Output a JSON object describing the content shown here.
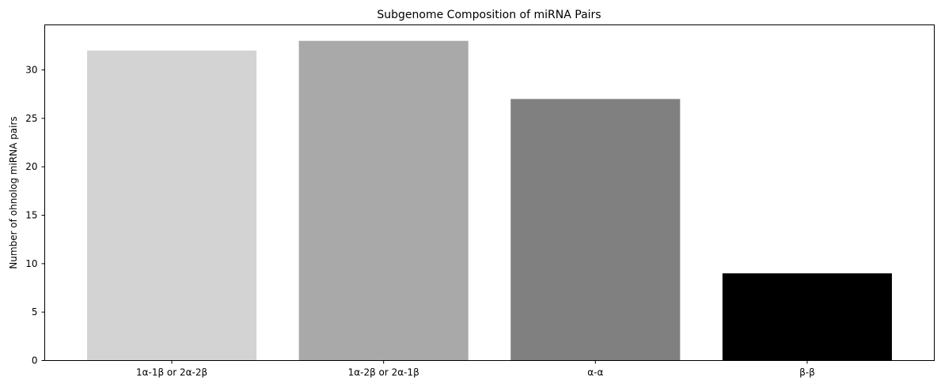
{
  "chart_data": {
    "type": "bar",
    "title": "Subgenome Composition of miRNA Pairs",
    "xlabel": "",
    "ylabel": "Number of ohnolog miRNA pairs",
    "categories": [
      "1α-1β or 2α-2β",
      "1α-2β or 2α-1β",
      "α-α",
      "β-β"
    ],
    "values": [
      32,
      33,
      27,
      9
    ],
    "colors": [
      "#d3d3d3",
      "#a9a9a9",
      "#808080",
      "#000000"
    ],
    "ylim": [
      0,
      34.65
    ],
    "yticks": [
      0,
      5,
      10,
      15,
      20,
      25,
      30
    ],
    "grid": false,
    "legend": "none"
  }
}
